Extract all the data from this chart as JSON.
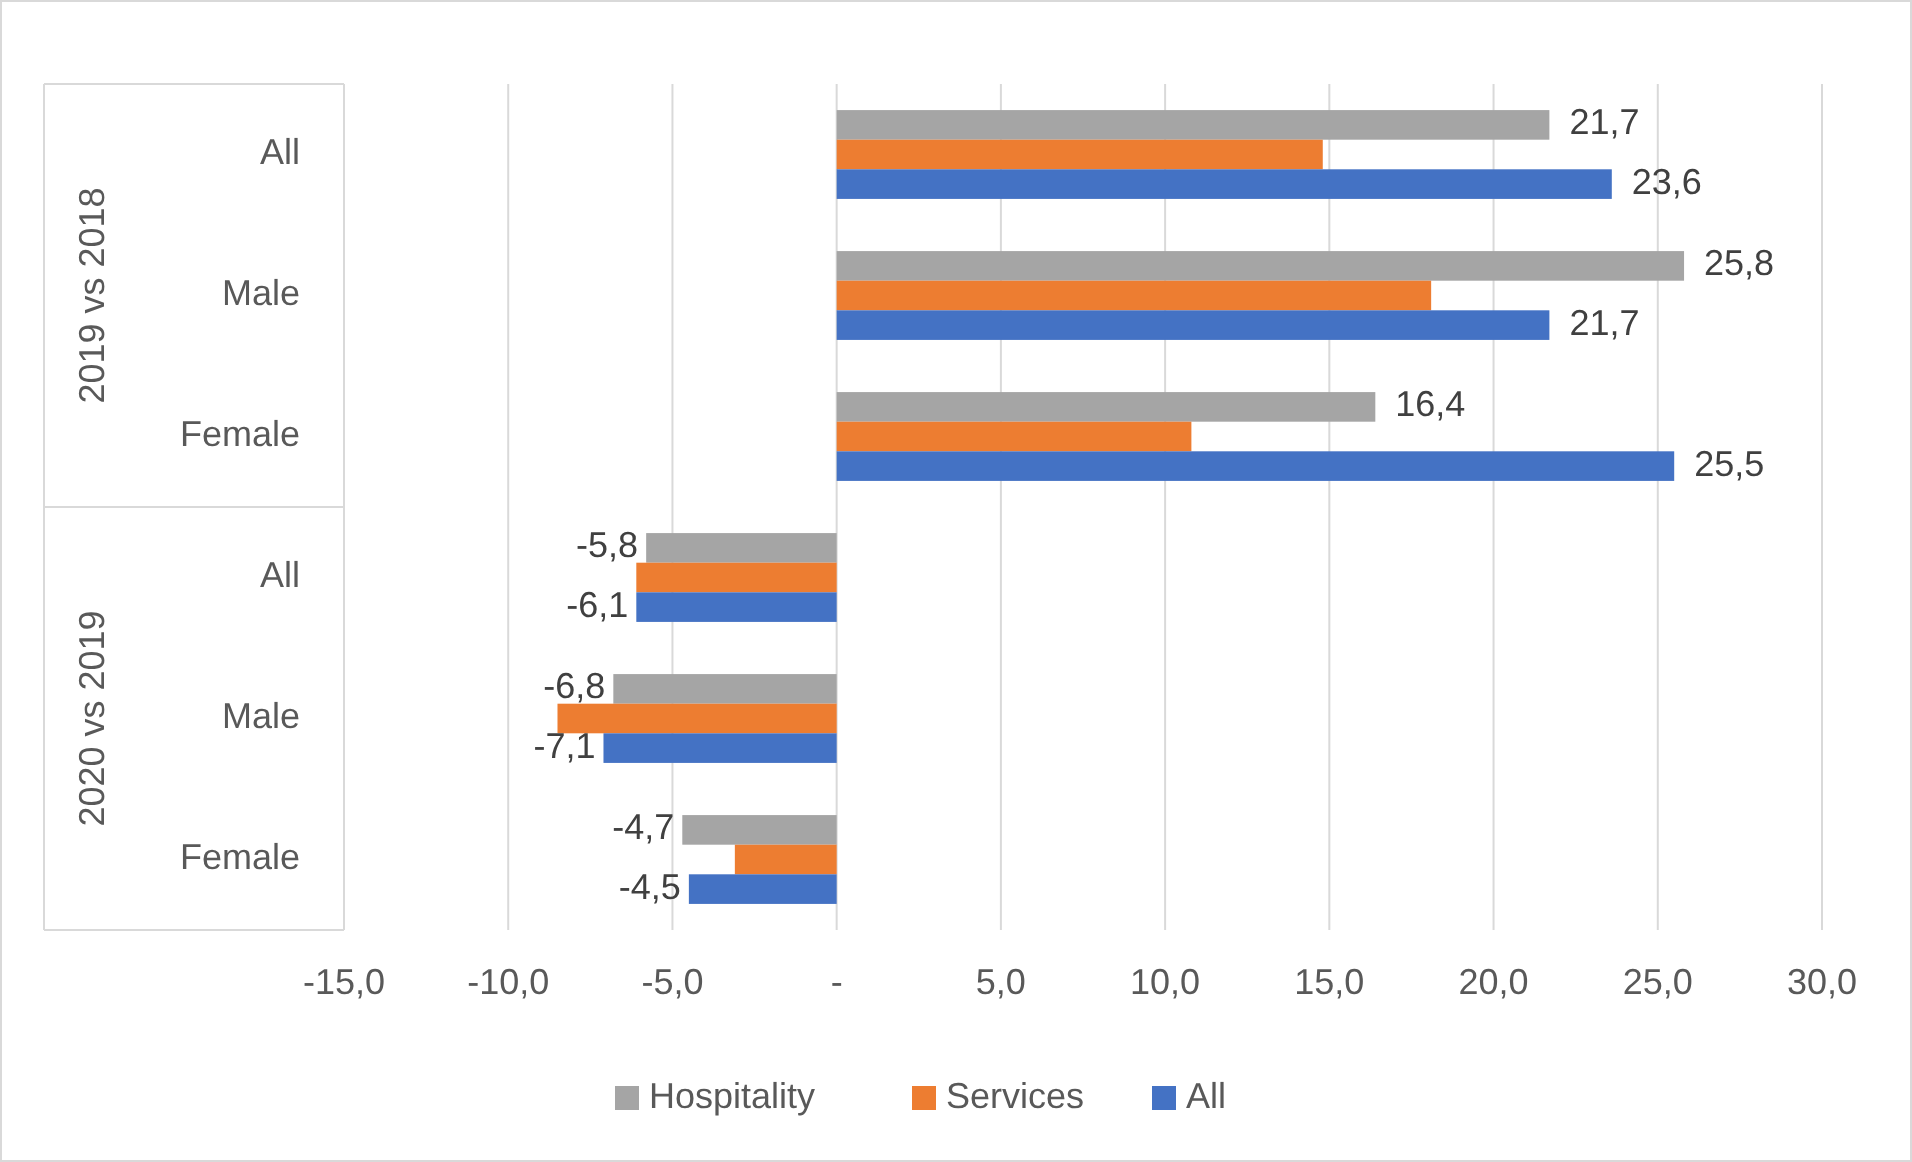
{
  "chart_data": {
    "type": "bar",
    "orientation": "horizontal",
    "categories": [
      "All",
      "Male",
      "Female",
      "All",
      "Male",
      "Female"
    ],
    "series": [
      {
        "name": "Hospitality",
        "color": "#a5a5a5",
        "values": [
          21.7,
          25.8,
          16.4,
          -5.8,
          -6.8,
          -4.7
        ],
        "value_labels": [
          "21,7",
          "25,8",
          "16,4",
          "-5,8",
          "-6,8",
          "-4,7"
        ]
      },
      {
        "name": "Services",
        "color": "#ed7d31",
        "values": [
          14.8,
          18.1,
          10.8,
          -6.1,
          -8.5,
          -3.1
        ]
      },
      {
        "name": "All",
        "color": "#4472c4",
        "values": [
          23.6,
          21.7,
          25.5,
          -6.1,
          -7.1,
          -4.5
        ],
        "value_labels": [
          "23,6",
          "21,7",
          "25,5",
          "-6,1",
          "-7,1",
          "-4,5"
        ]
      }
    ],
    "xlim": [
      -15,
      30
    ],
    "xticks": [
      {
        "value": -15,
        "label": "-15,0"
      },
      {
        "value": -10,
        "label": "-10,0"
      },
      {
        "value": -5,
        "label": "-5,0"
      },
      {
        "value": 0,
        "label": "-"
      },
      {
        "value": 5,
        "label": "5,0"
      },
      {
        "value": 10,
        "label": "10,0"
      },
      {
        "value": 15,
        "label": "15,0"
      },
      {
        "value": 20,
        "label": "20,0"
      },
      {
        "value": 25,
        "label": "25,0"
      },
      {
        "value": 30,
        "label": "30,0"
      }
    ],
    "annotations": [
      "2019 vs 2018",
      "2020 vs 2019"
    ],
    "grid": "x",
    "legend": "bottom"
  }
}
